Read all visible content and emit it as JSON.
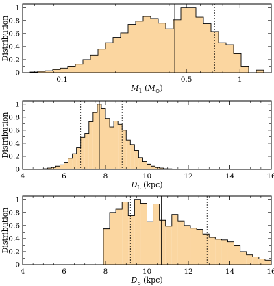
{
  "chart_data": [
    {
      "type": "histogram",
      "ylabel": "Distribution",
      "xlabel": {
        "main": "M",
        "sub": "1",
        "unit_open": " (",
        "unit_main": "M",
        "unit_sub": "⊙",
        "unit_close": ")"
      },
      "x_scale": "log",
      "xlim": [
        0.06,
        1.5
      ],
      "ylim": [
        0,
        1.05
      ],
      "x_ticks": [
        0.1,
        0.5,
        1
      ],
      "x_tick_labels": [
        "0.1",
        "0.5",
        "1"
      ],
      "y_ticks": [
        0,
        0.2,
        0.4,
        0.6,
        0.8,
        1
      ],
      "y_tick_labels": [
        "0",
        "0.2",
        "0.4",
        "0.6",
        "0.8",
        "1"
      ],
      "fill_color": "#fbd6a0",
      "bins_x_start": 0.06,
      "bins_x_end": 1.5,
      "values": [
        0.0,
        0.01,
        0.02,
        0.03,
        0.05,
        0.07,
        0.1,
        0.13,
        0.2,
        0.27,
        0.36,
        0.46,
        0.54,
        0.61,
        0.74,
        0.79,
        0.86,
        0.83,
        0.76,
        0.67,
        0.81,
        1.0,
        1.0,
        0.85,
        0.75,
        0.63,
        0.46,
        0.43,
        0.29,
        0.1,
        0.0,
        0.04,
        0.0
      ],
      "median": 0.43,
      "lower": 0.22,
      "upper": 0.72
    },
    {
      "type": "histogram",
      "ylabel": "Distribution",
      "xlabel": {
        "main": "D",
        "sub": "L",
        "unit_open": " (kpc)",
        "unit_main": "",
        "unit_sub": "",
        "unit_close": ""
      },
      "x_scale": "linear",
      "xlim": [
        4,
        16
      ],
      "ylim": [
        0,
        1.05
      ],
      "x_ticks": [
        4,
        6,
        8,
        10,
        12,
        14,
        16
      ],
      "x_tick_labels": [
        "4",
        "6",
        "8",
        "10",
        "12",
        "14",
        "16"
      ],
      "y_ticks": [
        0,
        0.2,
        0.4,
        0.6,
        0.8,
        1
      ],
      "y_tick_labels": [
        "0",
        "0.2",
        "0.4",
        "0.6",
        "0.8",
        "1"
      ],
      "fill_color": "#fbd6a0",
      "bins_x_start": 4.8,
      "bin_width": 0.2,
      "values": [
        0.005,
        0.01,
        0.02,
        0.03,
        0.05,
        0.07,
        0.11,
        0.17,
        0.24,
        0.33,
        0.49,
        0.55,
        0.73,
        0.87,
        1.0,
        0.93,
        0.78,
        0.65,
        0.74,
        0.69,
        0.6,
        0.45,
        0.38,
        0.29,
        0.18,
        0.12,
        0.08,
        0.05,
        0.03,
        0.02,
        0.01,
        0.008,
        0.005,
        0.003
      ],
      "median": 7.7,
      "lower": 6.8,
      "upper": 8.8
    },
    {
      "type": "histogram",
      "ylabel": "Distribution",
      "xlabel": {
        "main": "D",
        "sub": "S",
        "unit_open": " (kpc)",
        "unit_main": "",
        "unit_sub": "",
        "unit_close": ""
      },
      "x_scale": "linear",
      "xlim": [
        4,
        16
      ],
      "ylim": [
        0,
        1.05
      ],
      "x_ticks": [
        4,
        6,
        8,
        10,
        12,
        14,
        16
      ],
      "x_tick_labels": [
        "4",
        "6",
        "8",
        "10",
        "12",
        "14",
        "16"
      ],
      "y_ticks": [
        0,
        0.2,
        0.4,
        0.6,
        0.8,
        1
      ],
      "y_tick_labels": [
        "0",
        "0.2",
        "0.4",
        "0.6",
        "0.8",
        "1"
      ],
      "fill_color": "#fbd6a0",
      "bins_x_start": 7.9,
      "bin_width": 0.3,
      "values": [
        0.55,
        0.8,
        0.85,
        0.96,
        0.75,
        1.0,
        0.94,
        0.66,
        0.93,
        0.68,
        0.59,
        0.77,
        0.67,
        0.6,
        0.56,
        0.54,
        0.47,
        0.42,
        0.39,
        0.38,
        0.35,
        0.3,
        0.2,
        0.15,
        0.12,
        0.09,
        0.07
      ],
      "median": 10.7,
      "lower": 9.2,
      "upper": 12.9
    }
  ]
}
